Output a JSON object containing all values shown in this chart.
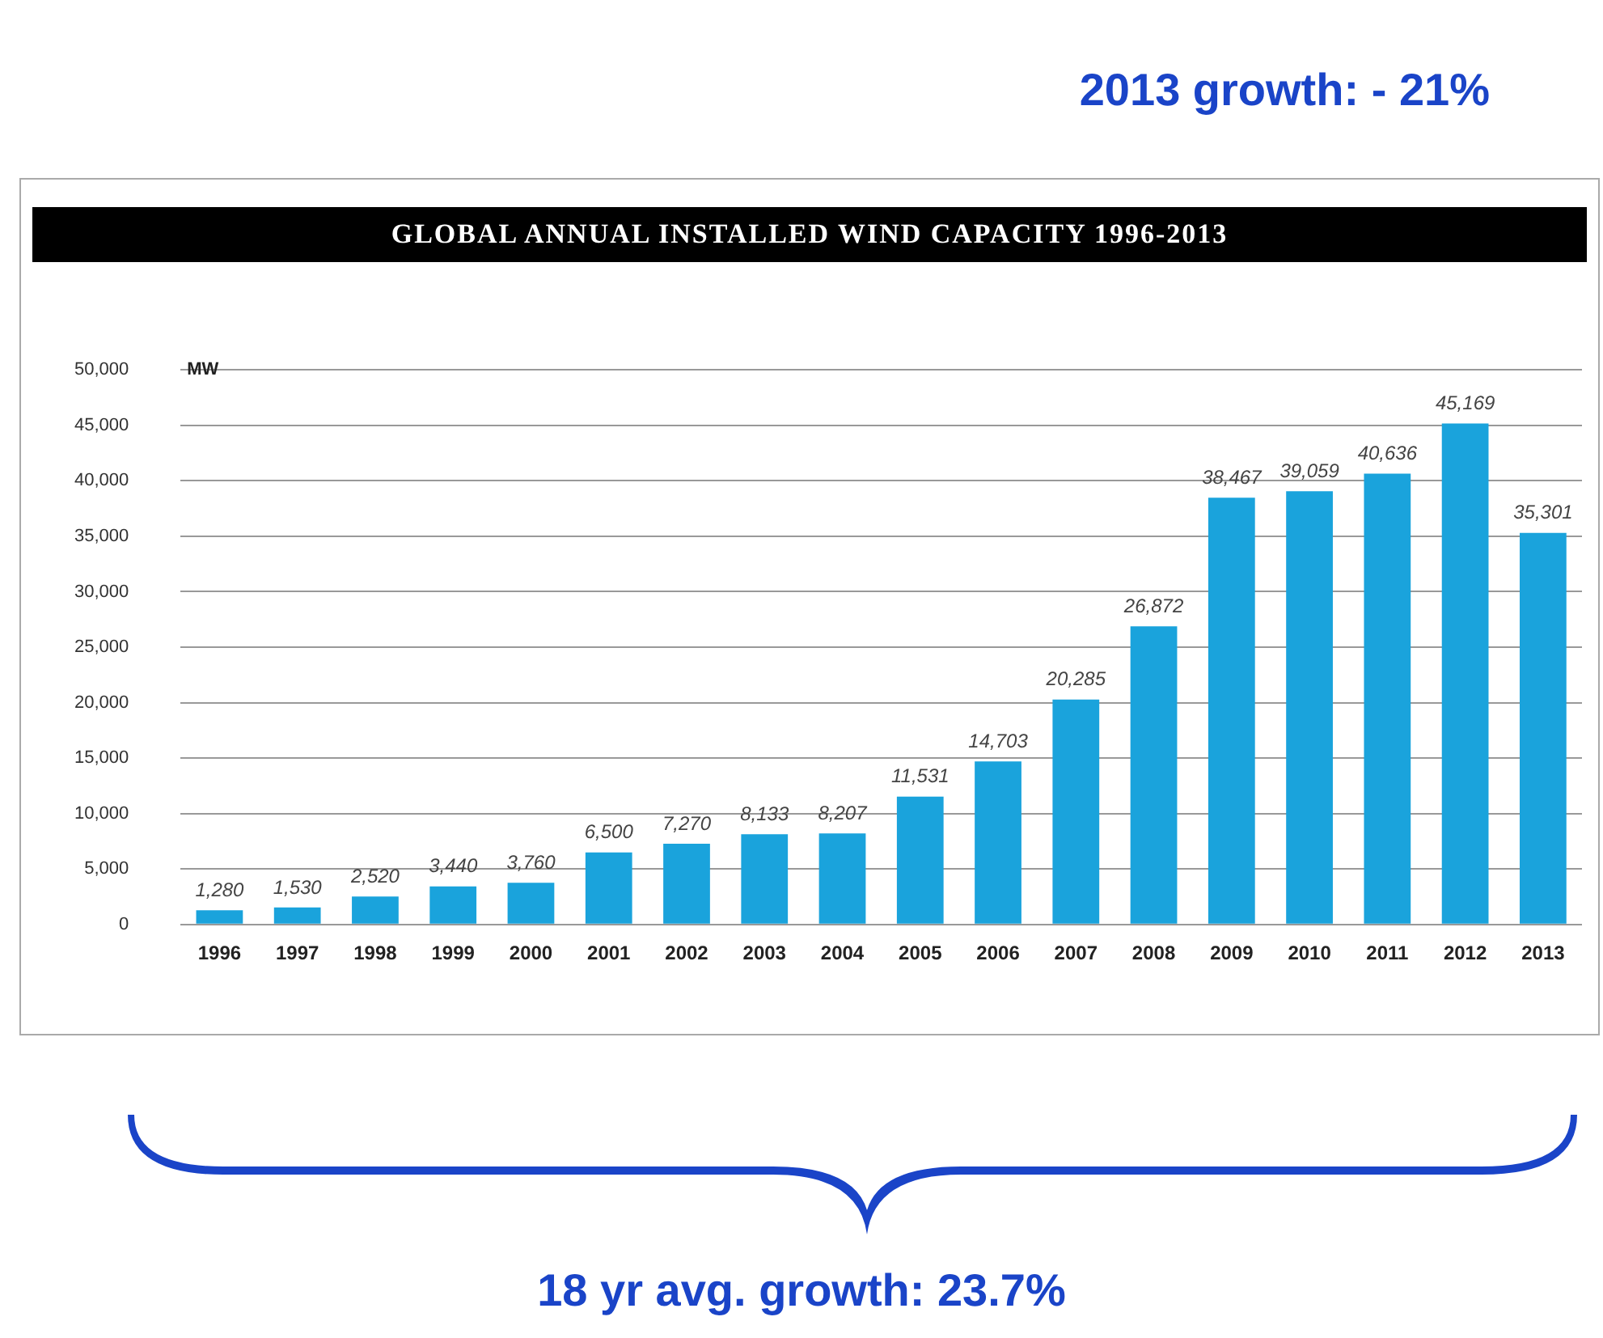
{
  "chart_data": {
    "type": "bar",
    "title": "GLOBAL ANNUAL INSTALLED WIND CAPACITY 1996-2013",
    "ylabel": "MW",
    "categories": [
      "1996",
      "1997",
      "1998",
      "1999",
      "2000",
      "2001",
      "2002",
      "2003",
      "2004",
      "2005",
      "2006",
      "2007",
      "2008",
      "2009",
      "2010",
      "2011",
      "2012",
      "2013"
    ],
    "values": [
      1280,
      1530,
      2520,
      3440,
      3760,
      6500,
      7270,
      8133,
      8207,
      11531,
      14703,
      20285,
      26872,
      38467,
      39059,
      40636,
      45169,
      35301
    ],
    "value_labels": [
      "1,280",
      "1,530",
      "2,520",
      "3,440",
      "3,760",
      "6,500",
      "7,270",
      "8,133",
      "8,207",
      "11,531",
      "14,703",
      "20,285",
      "26,872",
      "38,467",
      "39,059",
      "40,636",
      "45,169",
      "35,301"
    ],
    "color": "#1aa3dc",
    "ylim": [
      0,
      50000
    ],
    "yticks": [
      {
        "value": 0,
        "label": "0"
      },
      {
        "value": 5000,
        "label": "5,000"
      },
      {
        "value": 10000,
        "label": "10,000"
      },
      {
        "value": 15000,
        "label": "15,000"
      },
      {
        "value": 20000,
        "label": "20,000"
      },
      {
        "value": 25000,
        "label": "25,000"
      },
      {
        "value": 30000,
        "label": "30,000"
      },
      {
        "value": 35000,
        "label": "35,000"
      },
      {
        "value": 40000,
        "label": "40,000"
      },
      {
        "value": 45000,
        "label": "45,000"
      },
      {
        "value": 50000,
        "label": "50,000"
      }
    ],
    "grid": "y",
    "annotations": [
      "2013 growth: - 21%",
      "18 yr avg. growth: 23.7%"
    ]
  }
}
